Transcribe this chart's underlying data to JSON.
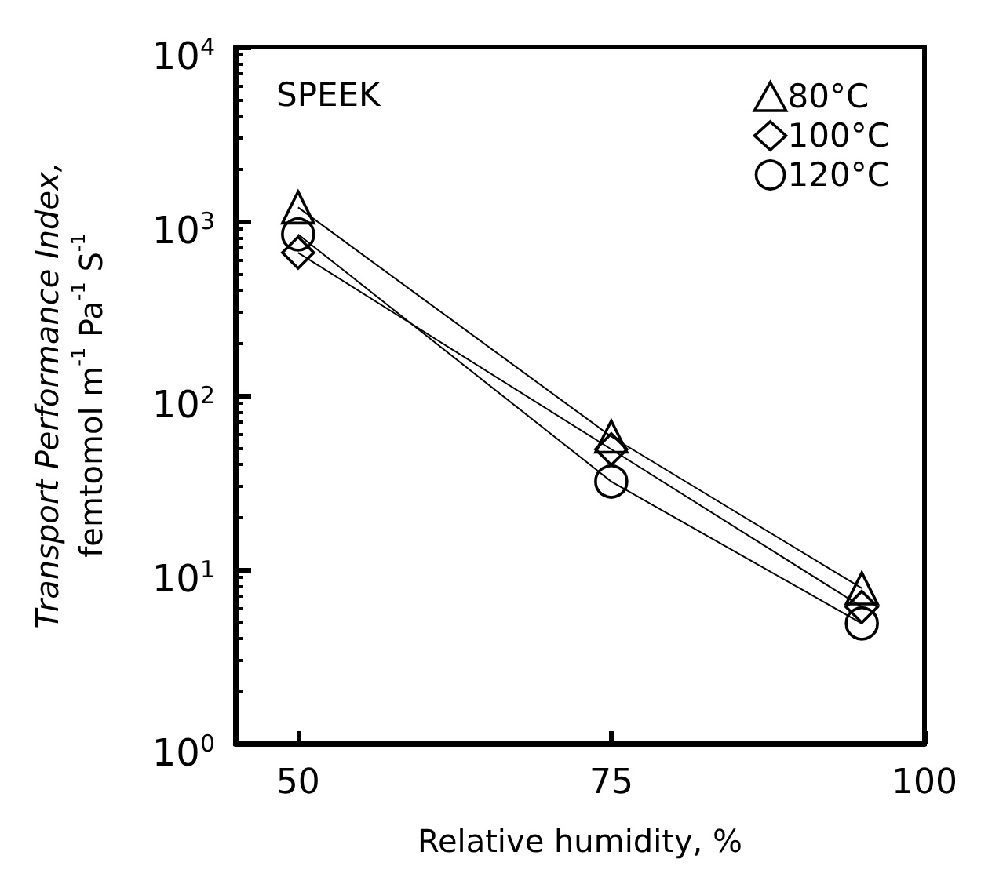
{
  "chart_data": {
    "type": "line",
    "xlabel": "Relative humidity, %",
    "ylabel": "Transport Performance Index,\nfemtomol m$^{-1}$ Pa$^{-1}$ S$^{-1}$",
    "annotations": [
      "SPEEK"
    ],
    "x": [
      50,
      75,
      95
    ],
    "log": "y",
    "xlim": [
      45,
      100
    ],
    "xticks": [
      50,
      75,
      100
    ],
    "ylim": [
      1,
      10000
    ],
    "yticks": [
      {
        "value": 1,
        "label": "10$^{0}$"
      },
      {
        "value": 10,
        "label": "10$^{1}$"
      },
      {
        "value": 100,
        "label": "10$^{2}$"
      },
      {
        "value": 1000,
        "label": "10$^{3}$"
      },
      {
        "value": 10000,
        "label": "10$^{4}$"
      }
    ],
    "grid": false,
    "legend": "top right",
    "line_style": "solid",
    "series": [
      {
        "name": "80°C",
        "color": "#000000",
        "marker": "triangle",
        "values": [
          1200,
          58,
          7.8
        ]
      },
      {
        "name": "100°C",
        "color": "#000000",
        "marker": "diamond",
        "values": [
          660,
          49,
          6.1
        ]
      },
      {
        "name": "120°C",
        "color": "#000000",
        "marker": "circle",
        "values": [
          840,
          32,
          4.9
        ]
      }
    ]
  }
}
